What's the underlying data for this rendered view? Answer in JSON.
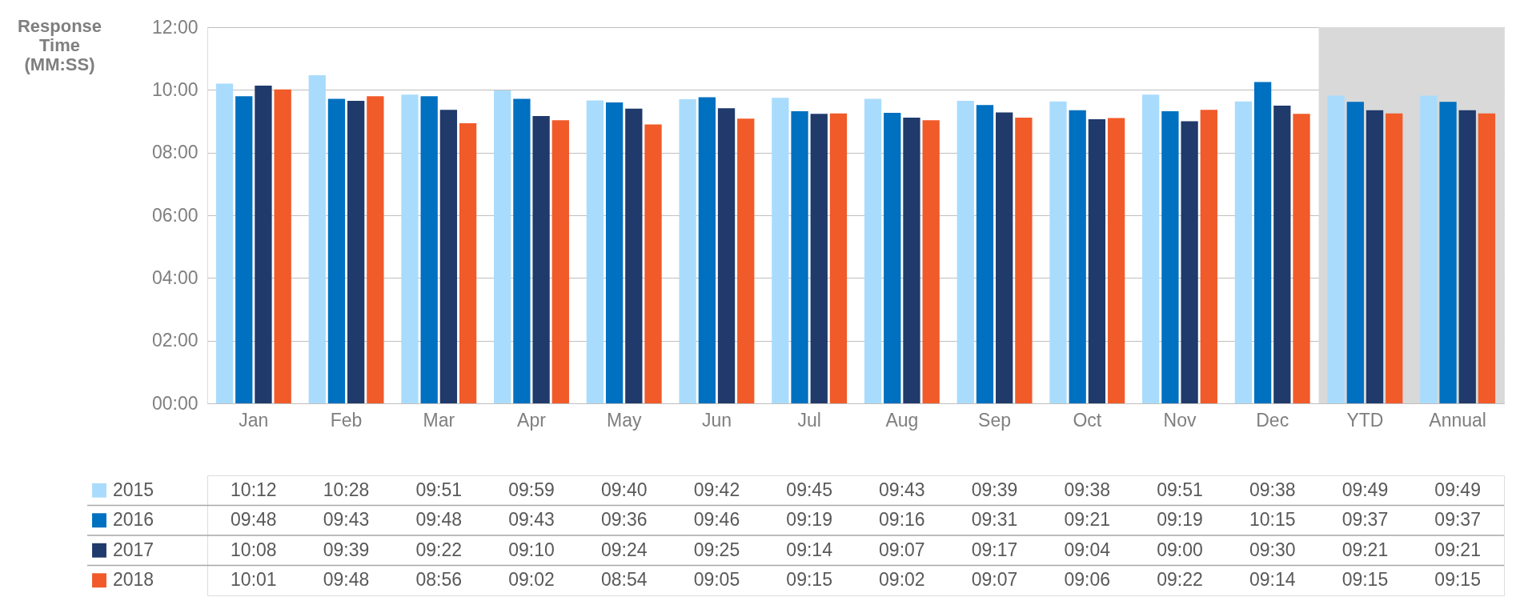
{
  "chart_data": {
    "type": "bar",
    "ylabel": "Response Time (MM:SS)",
    "categories": [
      "Jan",
      "Feb",
      "Mar",
      "Apr",
      "May",
      "Jun",
      "Jul",
      "Aug",
      "Sep",
      "Oct",
      "Nov",
      "Dec",
      "YTD",
      "Annual"
    ],
    "series": [
      {
        "name": "2015",
        "color": "#a9dcfc",
        "values": [
          10.2,
          10.467,
          9.85,
          9.983,
          9.667,
          9.7,
          9.75,
          9.717,
          9.65,
          9.633,
          9.85,
          9.633,
          9.817,
          9.817
        ],
        "value_labels": [
          "10:12",
          "10:28",
          "09:51",
          "09:59",
          "09:40",
          "09:42",
          "09:45",
          "09:43",
          "09:39",
          "09:38",
          "09:51",
          "09:38",
          "09:49",
          "09:49"
        ]
      },
      {
        "name": "2016",
        "color": "#0070c0",
        "values": [
          9.8,
          9.717,
          9.8,
          9.717,
          9.6,
          9.767,
          9.317,
          9.267,
          9.517,
          9.35,
          9.317,
          10.25,
          9.617,
          9.617
        ],
        "value_labels": [
          "09:48",
          "09:43",
          "09:48",
          "09:43",
          "09:36",
          "09:46",
          "09:19",
          "09:16",
          "09:31",
          "09:21",
          "09:19",
          "10:15",
          "09:37",
          "09:37"
        ]
      },
      {
        "name": "2017",
        "color": "#1f3a6b",
        "values": [
          10.133,
          9.65,
          9.367,
          9.167,
          9.4,
          9.417,
          9.233,
          9.117,
          9.283,
          9.067,
          9.0,
          9.5,
          9.35,
          9.35
        ],
        "value_labels": [
          "10:08",
          "09:39",
          "09:22",
          "09:10",
          "09:24",
          "09:25",
          "09:14",
          "09:07",
          "09:17",
          "09:04",
          "09:00",
          "09:30",
          "09:21",
          "09:21"
        ]
      },
      {
        "name": "2018",
        "color": "#f15a29",
        "values": [
          10.017,
          9.8,
          8.933,
          9.033,
          8.9,
          9.083,
          9.25,
          9.033,
          9.117,
          9.1,
          9.367,
          9.233,
          9.25,
          9.25
        ],
        "value_labels": [
          "10:01",
          "09:48",
          "08:56",
          "09:02",
          "08:54",
          "09:05",
          "09:15",
          "09:02",
          "09:07",
          "09:06",
          "09:22",
          "09:14",
          "09:15",
          "09:15"
        ]
      }
    ],
    "ylim": [
      0,
      12
    ],
    "yticks": [
      {
        "value": 0,
        "label": "00:00"
      },
      {
        "value": 2,
        "label": "02:00"
      },
      {
        "value": 4,
        "label": "04:00"
      },
      {
        "value": 6,
        "label": "06:00"
      },
      {
        "value": 8,
        "label": "08:00"
      },
      {
        "value": 10,
        "label": "10:00"
      },
      {
        "value": 12,
        "label": "12:00"
      }
    ],
    "bands": [
      {
        "axis": "x",
        "from": "YTD",
        "to": "Annual",
        "color": "#d9d9d9"
      }
    ],
    "grid": "y",
    "legend": "bottom"
  }
}
